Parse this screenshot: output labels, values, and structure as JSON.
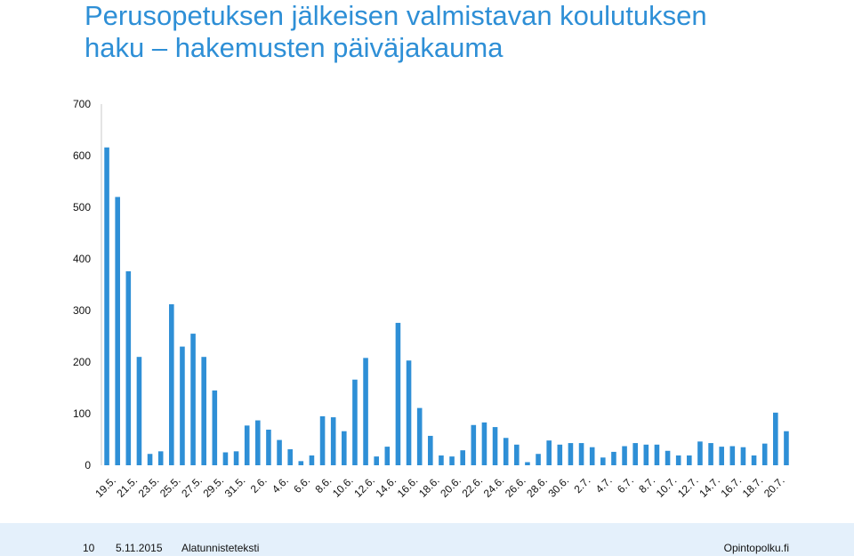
{
  "title": {
    "line1": "Perusopetuksen jälkeisen valmistavan koulutuksen",
    "line2": "haku – hakemusten päiväjakauma"
  },
  "footer": {
    "page": "10",
    "date": "5.11.2015",
    "text": "Alatunnisteteksti",
    "site": "Opintopolku.fi"
  },
  "colors": {
    "accent": "#2e8fd6",
    "bar": "#2e8fd6",
    "footer_bg": "#e4f0fb"
  },
  "chart_data": {
    "type": "bar",
    "title": "",
    "xlabel": "",
    "ylabel": "",
    "ylim": [
      0,
      700
    ],
    "yticks": [
      0,
      100,
      200,
      300,
      400,
      500,
      600,
      700
    ],
    "grid": false,
    "legend": "none",
    "tick_labels_shown": [
      "19.5.",
      "21.5.",
      "23.5.",
      "25.5.",
      "27.5.",
      "29.5.",
      "31.5.",
      "2.6.",
      "4.6.",
      "6.6.",
      "8.6.",
      "10.6.",
      "12.6.",
      "14.6.",
      "16.6.",
      "18.6.",
      "20.6.",
      "22.6.",
      "24.6.",
      "26.6.",
      "28.6.",
      "30.6.",
      "2.7.",
      "4.7.",
      "6.7.",
      "8.7.",
      "10.7.",
      "12.7.",
      "14.7.",
      "16.7.",
      "18.7.",
      "20.7."
    ],
    "categories": [
      "19.5.",
      "20.5.",
      "21.5.",
      "22.5.",
      "23.5.",
      "24.5.",
      "25.5.",
      "26.5.",
      "27.5.",
      "28.5.",
      "29.5.",
      "30.5.",
      "31.5.",
      "1.6.",
      "2.6.",
      "3.6.",
      "4.6.",
      "5.6.",
      "6.6.",
      "7.6.",
      "8.6.",
      "9.6.",
      "10.6.",
      "11.6.",
      "12.6.",
      "13.6.",
      "14.6.",
      "15.6.",
      "16.6.",
      "17.6.",
      "18.6.",
      "19.6.",
      "20.6.",
      "21.6.",
      "22.6.",
      "23.6.",
      "24.6.",
      "25.6.",
      "26.6.",
      "27.6.",
      "28.6.",
      "29.6.",
      "30.6.",
      "1.7.",
      "2.7.",
      "3.7.",
      "4.7.",
      "5.7.",
      "6.7.",
      "7.7.",
      "8.7.",
      "9.7.",
      "10.7.",
      "11.7.",
      "12.7.",
      "13.7.",
      "14.7.",
      "15.7.",
      "16.7.",
      "17.7.",
      "18.7.",
      "19.7.",
      "20.7.",
      "21.7."
    ],
    "values": [
      616,
      520,
      376,
      210,
      22,
      27,
      312,
      230,
      255,
      210,
      145,
      25,
      27,
      77,
      87,
      69,
      49,
      31,
      8,
      19,
      95,
      93,
      66,
      166,
      208,
      17,
      36,
      276,
      203,
      111,
      57,
      19,
      17,
      29,
      78,
      83,
      74,
      53,
      40,
      6,
      22,
      48,
      40,
      43,
      43,
      35,
      15,
      26,
      37,
      43,
      40,
      40,
      28,
      19,
      19,
      46,
      43,
      36,
      37,
      35,
      19,
      42,
      102,
      66
    ]
  }
}
